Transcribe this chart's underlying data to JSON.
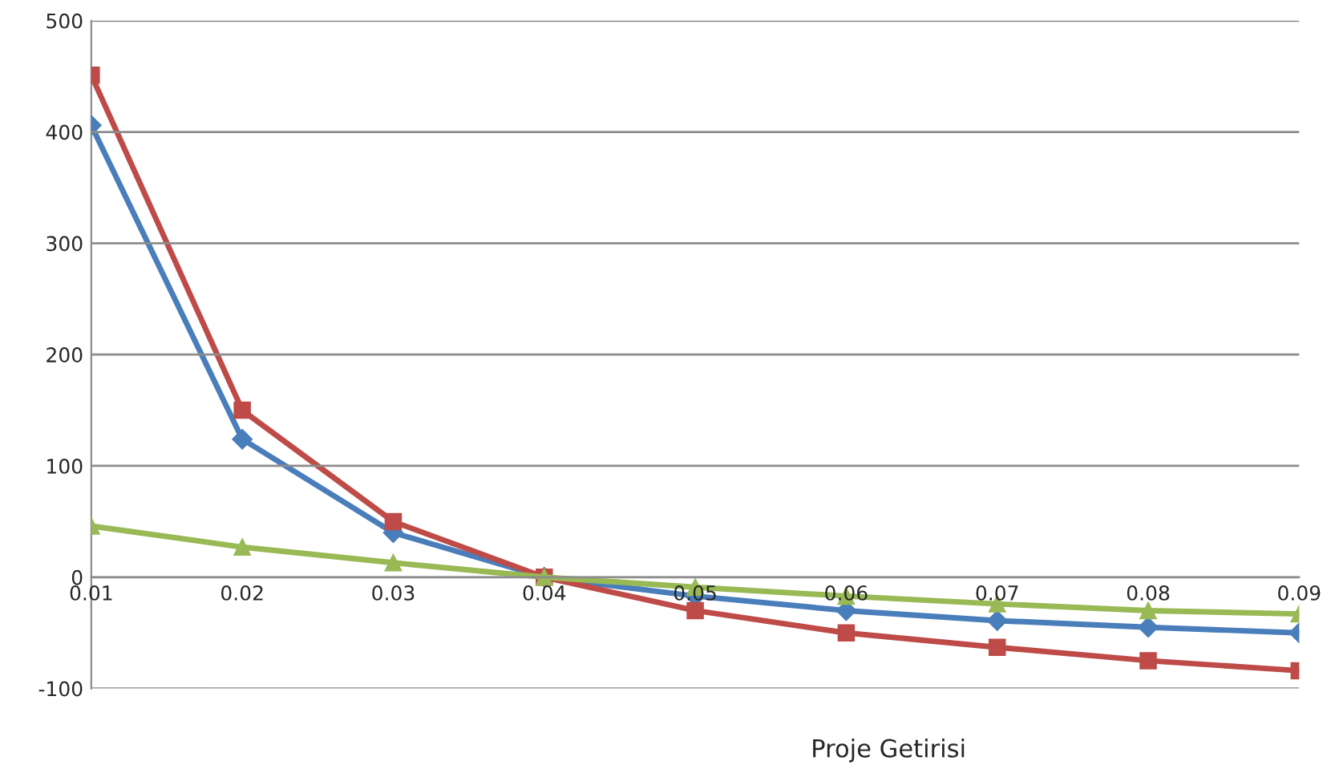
{
  "chart_data": {
    "type": "line",
    "xlabel": "Proje Getirisi",
    "x": [
      0.01,
      0.02,
      0.03,
      0.04,
      0.05,
      0.06,
      0.07,
      0.08,
      0.09
    ],
    "series": [
      {
        "color": "#4a7ebb",
        "marker": "diamond",
        "values": [
          406,
          124,
          40,
          0,
          -17,
          -30,
          -39,
          -45,
          -50
        ]
      },
      {
        "color": "#be4b48",
        "marker": "square",
        "values": [
          451,
          150,
          50,
          0,
          -30,
          -50,
          -63,
          -75,
          -84
        ]
      },
      {
        "color": "#98b954",
        "marker": "triangle",
        "values": [
          46,
          27,
          13,
          0,
          -9,
          -17,
          -24,
          -30,
          -33
        ]
      }
    ],
    "xlim": [
      0.01,
      0.09
    ],
    "xticks": [
      0.01,
      0.02,
      0.03,
      0.04,
      0.05,
      0.06,
      0.07,
      0.08,
      0.09
    ],
    "ylim": [
      -100,
      500
    ],
    "yticks": [
      -100,
      0,
      100,
      200,
      300,
      400,
      500
    ],
    "grid": "y",
    "legend": false,
    "line_style": "solid"
  }
}
